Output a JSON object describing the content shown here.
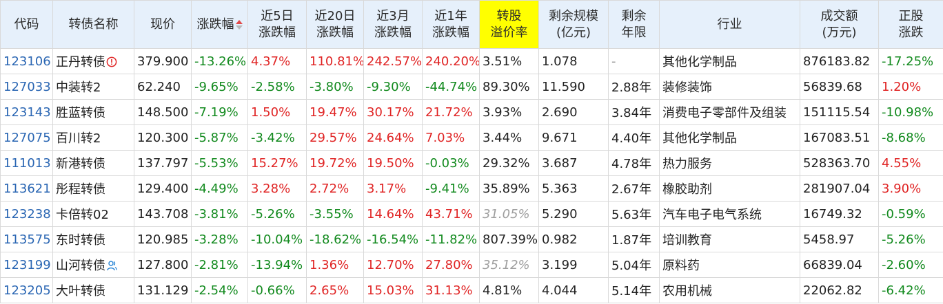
{
  "columns": [
    {
      "line1": "代码",
      "line2": ""
    },
    {
      "line1": "转债名称",
      "line2": ""
    },
    {
      "line1": "现价",
      "line2": ""
    },
    {
      "line1": "涨跌幅",
      "line2": ""
    },
    {
      "line1": "近5日",
      "line2": "涨跌幅"
    },
    {
      "line1": "近20日",
      "line2": "涨跌幅"
    },
    {
      "line1": "近3月",
      "line2": "涨跌幅"
    },
    {
      "line1": "近1年",
      "line2": "涨跌幅"
    },
    {
      "line1": "转股",
      "line2": "溢价率"
    },
    {
      "line1": "剩余规模",
      "line2": "(亿元)"
    },
    {
      "line1": "剩余",
      "line2": "年限"
    },
    {
      "line1": "行业",
      "line2": ""
    },
    {
      "line1": "成交额",
      "line2": "(万元)"
    },
    {
      "line1": "正股",
      "line2": "涨跌"
    }
  ],
  "colors": {
    "header_bg": "#e6f0fb",
    "highlight_header_bg": "#ffff00",
    "code_text": "#2a66b3",
    "up": "#e02424",
    "down": "#128a1e",
    "faded": "#9e9e9e",
    "border": "#d9d9d9"
  },
  "rows": [
    {
      "code": "123106",
      "name": "正丹转债",
      "icon": "alert-circle-icon",
      "price": "379.900",
      "chg": "-13.26%",
      "chg5d": "4.37%",
      "chg20d": "110.81%",
      "chg3m": "242.57%",
      "chg1y": "240.20%",
      "premium": "3.51%",
      "premium_faded": false,
      "scale": "1.078",
      "years": "-",
      "industry": "其他化学制品",
      "turnover": "876183.82",
      "stock_chg": "-17.25%"
    },
    {
      "code": "127033",
      "name": "中装转2",
      "icon": "",
      "price": "62.240",
      "chg": "-9.65%",
      "chg5d": "-2.58%",
      "chg20d": "-3.80%",
      "chg3m": "-9.30%",
      "chg1y": "-44.74%",
      "premium": "89.30%",
      "premium_faded": false,
      "scale": "11.590",
      "years": "2.88年",
      "industry": "装修装饰",
      "turnover": "56839.68",
      "stock_chg": "1.20%"
    },
    {
      "code": "123143",
      "name": "胜蓝转债",
      "icon": "",
      "price": "148.500",
      "chg": "-7.19%",
      "chg5d": "1.50%",
      "chg20d": "19.47%",
      "chg3m": "30.17%",
      "chg1y": "21.72%",
      "premium": "3.93%",
      "premium_faded": false,
      "scale": "2.690",
      "years": "3.84年",
      "industry": "消费电子零部件及组装",
      "turnover": "151115.54",
      "stock_chg": "-10.98%"
    },
    {
      "code": "127075",
      "name": "百川转2",
      "icon": "",
      "price": "120.300",
      "chg": "-5.87%",
      "chg5d": "-3.42%",
      "chg20d": "29.57%",
      "chg3m": "24.64%",
      "chg1y": "7.03%",
      "premium": "3.44%",
      "premium_faded": false,
      "scale": "9.671",
      "years": "4.40年",
      "industry": "其他化学制品",
      "turnover": "167083.51",
      "stock_chg": "-8.68%"
    },
    {
      "code": "111013",
      "name": "新港转债",
      "icon": "",
      "price": "137.797",
      "chg": "-5.53%",
      "chg5d": "15.27%",
      "chg20d": "19.72%",
      "chg3m": "19.50%",
      "chg1y": "-0.03%",
      "premium": "29.32%",
      "premium_faded": false,
      "scale": "3.687",
      "years": "4.78年",
      "industry": "热力服务",
      "turnover": "528363.70",
      "stock_chg": "4.55%"
    },
    {
      "code": "113621",
      "name": "彤程转债",
      "icon": "",
      "price": "129.400",
      "chg": "-4.49%",
      "chg5d": "3.28%",
      "chg20d": "2.72%",
      "chg3m": "3.17%",
      "chg1y": "-9.41%",
      "premium": "35.89%",
      "premium_faded": false,
      "scale": "5.363",
      "years": "2.67年",
      "industry": "橡胶助剂",
      "turnover": "281907.04",
      "stock_chg": "3.90%"
    },
    {
      "code": "123238",
      "name": "卡倍转02",
      "icon": "",
      "price": "143.708",
      "chg": "-3.81%",
      "chg5d": "-5.26%",
      "chg20d": "-3.55%",
      "chg3m": "14.64%",
      "chg1y": "43.71%",
      "premium": "31.05%",
      "premium_faded": true,
      "scale": "5.290",
      "years": "5.63年",
      "industry": "汽车电子电气系统",
      "turnover": "16749.32",
      "stock_chg": "-0.59%"
    },
    {
      "code": "113575",
      "name": "东时转债",
      "icon": "",
      "price": "120.985",
      "chg": "-3.28%",
      "chg5d": "-10.04%",
      "chg20d": "-18.62%",
      "chg3m": "-16.54%",
      "chg1y": "-11.82%",
      "premium": "807.39%",
      "premium_faded": false,
      "scale": "0.982",
      "years": "1.87年",
      "industry": "培训教育",
      "turnover": "5458.97",
      "stock_chg": "-5.26%"
    },
    {
      "code": "123199",
      "name": "山河转债",
      "icon": "person-icon",
      "price": "127.800",
      "chg": "-2.81%",
      "chg5d": "-13.94%",
      "chg20d": "1.36%",
      "chg3m": "12.70%",
      "chg1y": "27.80%",
      "premium": "35.12%",
      "premium_faded": true,
      "scale": "3.199",
      "years": "5.04年",
      "industry": "原料药",
      "turnover": "66839.04",
      "stock_chg": "-2.60%"
    },
    {
      "code": "123205",
      "name": "大叶转债",
      "icon": "",
      "price": "131.129",
      "chg": "-2.54%",
      "chg5d": "-0.66%",
      "chg20d": "2.65%",
      "chg3m": "15.03%",
      "chg1y": "31.13%",
      "premium": "4.81%",
      "premium_faded": false,
      "scale": "4.044",
      "years": "5.14年",
      "industry": "农用机械",
      "turnover": "22062.82",
      "stock_chg": "-6.42%"
    }
  ]
}
